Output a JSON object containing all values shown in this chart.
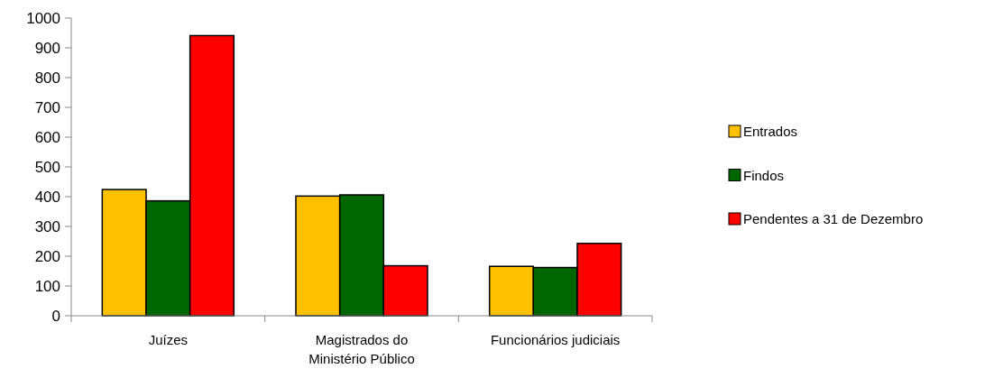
{
  "chart_data": {
    "type": "bar",
    "categories": [
      "Juízes",
      "Magistrados do Ministério Público",
      "Funcionários judiciais"
    ],
    "series": [
      {
        "name": "Entrados",
        "color": "#ffc000",
        "values": [
          424,
          402,
          166
        ]
      },
      {
        "name": "Findos",
        "color": "#006600",
        "values": [
          386,
          406,
          162
        ]
      },
      {
        "name": "Pendentes a 31 de Dezembro",
        "color": "#ff0000",
        "values": [
          941,
          168,
          243
        ]
      }
    ],
    "ylim": [
      0,
      1000
    ],
    "yticks": [
      0,
      100,
      200,
      300,
      400,
      500,
      600,
      700,
      800,
      900,
      1000
    ],
    "grid": false,
    "legend": "right"
  }
}
